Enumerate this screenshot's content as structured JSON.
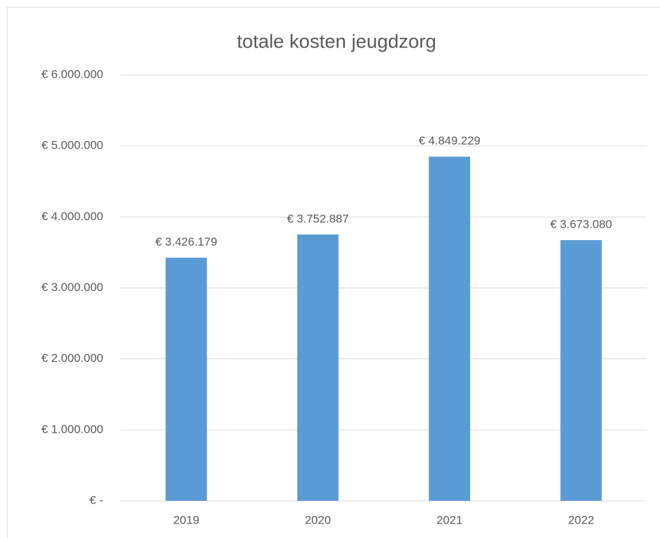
{
  "chart_data": {
    "type": "bar",
    "title": "totale kosten jeugdzorg",
    "categories": [
      "2019",
      "2020",
      "2021",
      "2022"
    ],
    "values": [
      3426179,
      3752887,
      4849229,
      3673080
    ],
    "value_labels": [
      "€ 3.426.179",
      "€ 3.752.887",
      "€ 4.849.229",
      "€ 3.673.080"
    ],
    "color": "#5b9bd5",
    "ylim": [
      0,
      6000000
    ],
    "yticks": [
      {
        "value": 0,
        "label": "€ -"
      },
      {
        "value": 1000000,
        "label": "€ 1.000.000"
      },
      {
        "value": 2000000,
        "label": "€ 2.000.000"
      },
      {
        "value": 3000000,
        "label": "€ 3.000.000"
      },
      {
        "value": 4000000,
        "label": "€ 4.000.000"
      },
      {
        "value": 5000000,
        "label": "€ 5.000.000"
      },
      {
        "value": 6000000,
        "label": "€ 6.000.000"
      }
    ],
    "grid": true
  }
}
